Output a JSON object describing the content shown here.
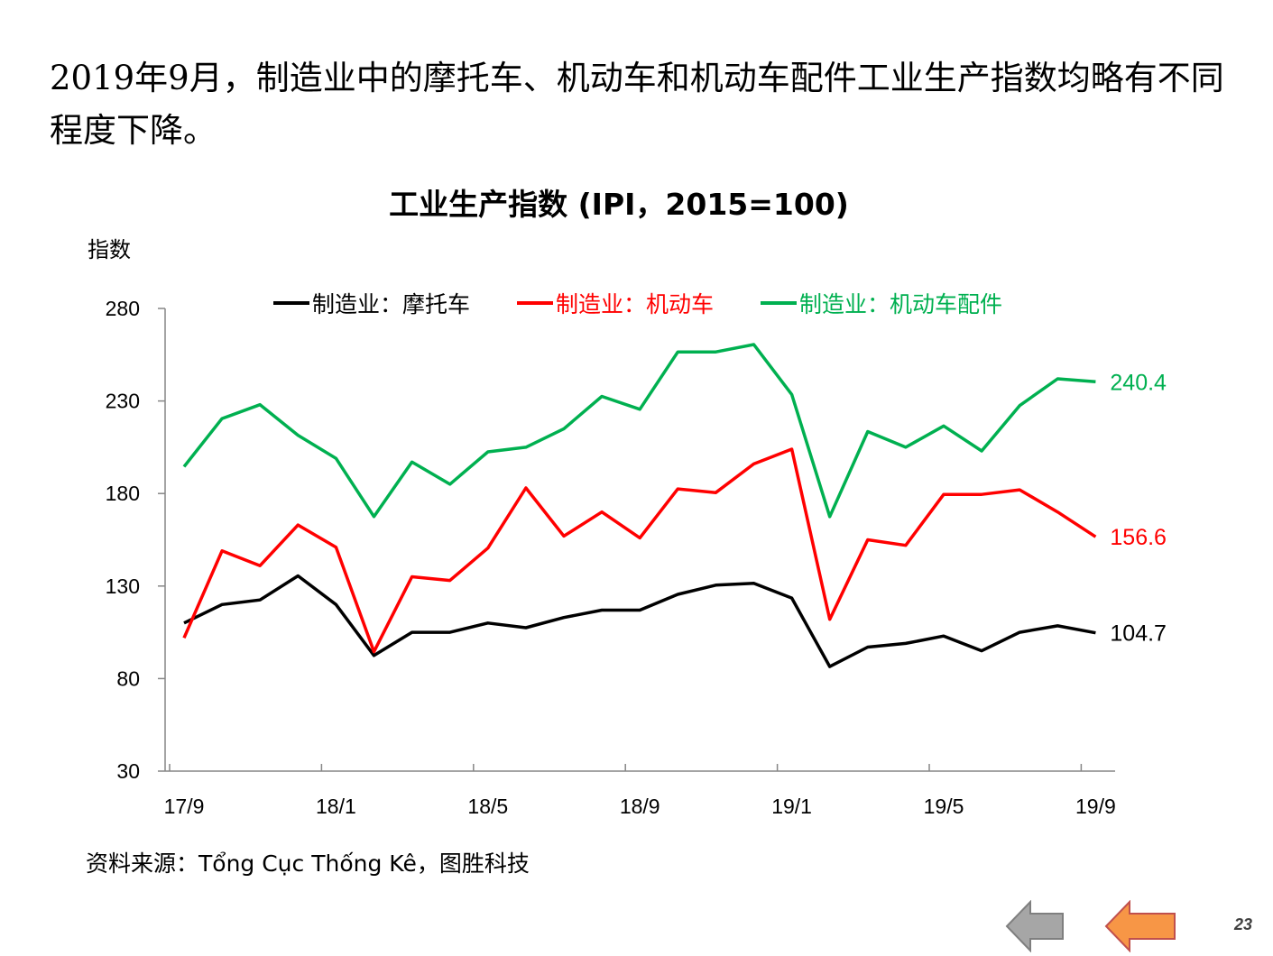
{
  "slide": {
    "headline": "2019年9月，制造业中的摩托车、机动车和机动车配件工业生产指数均略有不同程度下降。",
    "source": "资料来源：Tổng Cục Thống Kê，图胜科技",
    "page_number": "23",
    "nav": {
      "prev_icon": "arrow-left-icon",
      "next_icon": "arrow-left-icon",
      "prev_color": "#a6a6a6",
      "next_color": "#f79646"
    }
  },
  "chart_data": {
    "type": "line",
    "title": "工业生产指数 (IPI，2015=100)",
    "ylabel": "指数",
    "xlabel": "",
    "ylim": [
      30,
      280
    ],
    "yticks": [
      30,
      80,
      130,
      180,
      230,
      280
    ],
    "x": [
      "17/9",
      "17/10",
      "17/11",
      "17/12",
      "18/1",
      "18/2",
      "18/3",
      "18/4",
      "18/5",
      "18/6",
      "18/7",
      "18/8",
      "18/9",
      "18/10",
      "18/11",
      "18/12",
      "19/1",
      "19/2",
      "19/3",
      "19/4",
      "19/5",
      "19/6",
      "19/7",
      "19/8",
      "19/9"
    ],
    "xtick_labels": [
      "17/9",
      "18/1",
      "18/5",
      "18/9",
      "19/1",
      "19/5",
      "19/9"
    ],
    "legend_position": "top",
    "grid": false,
    "series": [
      {
        "name": "制造业：摩托车",
        "color": "#000000",
        "values": [
          110.0,
          120.0,
          122.5,
          135.5,
          120.0,
          92.5,
          105.0,
          105.0,
          110.0,
          107.5,
          113.0,
          117.0,
          117.0,
          125.5,
          130.5,
          131.5,
          123.5,
          86.5,
          97.0,
          99.0,
          103.0,
          95.0,
          105.0,
          108.5,
          104.7
        ],
        "end_label": "104.7"
      },
      {
        "name": "制造业：机动车",
        "color": "#ff0000",
        "values": [
          102.0,
          149.0,
          141.0,
          163.0,
          151.0,
          94.5,
          135.0,
          133.0,
          150.5,
          183.0,
          157.0,
          170.0,
          156.0,
          182.5,
          180.5,
          196.0,
          204.0,
          112.0,
          155.0,
          152.0,
          179.5,
          179.5,
          182.0,
          170.0,
          156.6
        ],
        "end_label": "156.6"
      },
      {
        "name": "制造业：机动车配件",
        "color": "#00b050",
        "values": [
          194.5,
          220.5,
          228.0,
          211.5,
          199.0,
          167.5,
          197.0,
          185.0,
          202.5,
          205.0,
          215.0,
          232.5,
          225.5,
          256.5,
          256.5,
          260.5,
          233.5,
          167.5,
          213.5,
          205.0,
          216.5,
          203.0,
          227.5,
          242.0,
          240.4
        ],
        "end_label": "240.4"
      }
    ]
  }
}
